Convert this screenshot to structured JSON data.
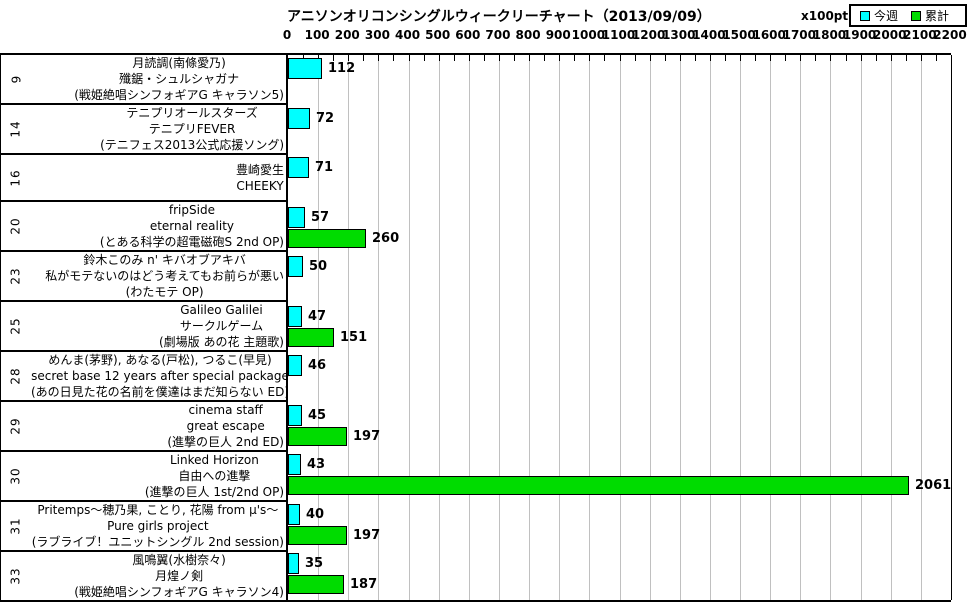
{
  "chart_data": {
    "type": "bar",
    "orientation": "horizontal",
    "title": "アニソンオリコンシングルウィークリーチャート（2013/09/09）",
    "unit_label": "x100pt",
    "legend_position": "top-right",
    "grid": "vertical-major",
    "series": [
      {
        "name": "今週",
        "color": "#00FFFF"
      },
      {
        "name": "累計",
        "color": "#00DC00"
      }
    ],
    "grid_color": "#C0C0C0",
    "xlim": [
      0,
      2200
    ],
    "x_major_tick": 100,
    "x_minor_tick": 50,
    "x_tick_labels": [
      "0",
      "100",
      "200",
      "300",
      "400",
      "500",
      "600",
      "700",
      "800",
      "900",
      "1000",
      "1100",
      "1200",
      "1300",
      "1400",
      "1500",
      "1600",
      "1700",
      "1800",
      "1900",
      "2000",
      "2100",
      "2200"
    ],
    "rows": [
      {
        "rank": "9",
        "lines": [
          "月読調(南條愛乃)",
          "殲鋸・シュルシャガナ",
          "(戦姫絶唱シンフォギアG キャラソン5)"
        ],
        "this_week": 112,
        "total": null
      },
      {
        "rank": "14",
        "lines": [
          "テニプリオールスターズ",
          "テニプリFEVER",
          "(テニフェス2013公式応援ソング)"
        ],
        "this_week": 72,
        "total": null
      },
      {
        "rank": "16",
        "lines": [
          "豊崎愛生",
          "CHEEKY"
        ],
        "this_week": 71,
        "total": null
      },
      {
        "rank": "20",
        "lines": [
          "fripSide",
          "eternal reality",
          "(とある科学の超電磁砲S 2nd OP)"
        ],
        "this_week": 57,
        "total": 260
      },
      {
        "rank": "23",
        "lines": [
          "鈴木このみ n' キバオブアキバ",
          "私がモテないのはどう考えてもお前らが悪い",
          "(わたモテ OP)"
        ],
        "this_week": 50,
        "total": null
      },
      {
        "rank": "25",
        "lines": [
          "Galileo Galilei",
          "サークルゲーム",
          "(劇場版 あの花 主題歌)"
        ],
        "this_week": 47,
        "total": 151
      },
      {
        "rank": "28",
        "lines": [
          "めんま(茅野), あなる(戸松), つるこ(早見)",
          "secret base 12 years after special package",
          "(あの日見た花の名前を僕達はまだ知らない ED)"
        ],
        "this_week": 46,
        "total": null
      },
      {
        "rank": "29",
        "lines": [
          "cinema staff",
          "great escape",
          "(進撃の巨人 2nd ED)"
        ],
        "this_week": 45,
        "total": 197
      },
      {
        "rank": "30",
        "lines": [
          "Linked Horizon",
          "自由への進撃",
          "(進撃の巨人 1st/2nd OP)"
        ],
        "this_week": 43,
        "total": 2061
      },
      {
        "rank": "31",
        "lines": [
          "Pritemps～穂乃果, ことり, 花陽 from μ's～",
          "Pure girls project",
          "(ラブライブ！ユニットシングル 2nd session)"
        ],
        "this_week": 40,
        "total": 197
      },
      {
        "rank": "33",
        "lines": [
          "風鳴翼(水樹奈々)",
          "月煌ノ剣",
          "(戦姫絶唱シンフォギアG キャラソン4)"
        ],
        "this_week": 35,
        "total": 187
      }
    ]
  }
}
